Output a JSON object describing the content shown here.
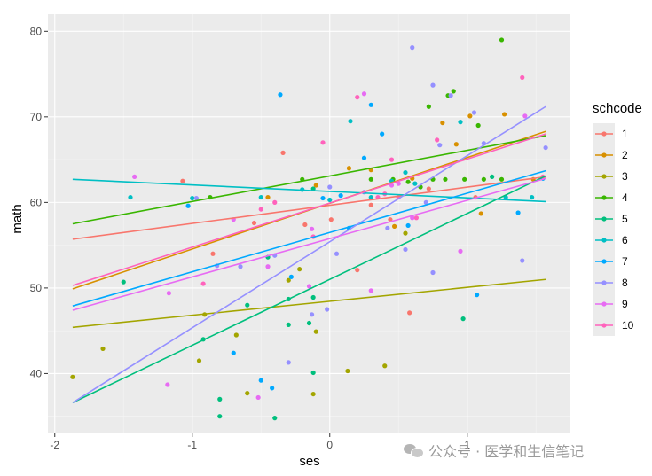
{
  "chart_data": {
    "type": "scatter",
    "title": "",
    "xlabel": "ses",
    "ylabel": "math",
    "xlim": [
      -2.05,
      1.75
    ],
    "ylim": [
      33,
      82
    ],
    "x_ticks": [
      -2,
      -1,
      0,
      1
    ],
    "y_ticks": [
      40,
      50,
      60,
      70,
      80
    ],
    "grid": true,
    "legend": {
      "title": "schcode",
      "position": "right"
    },
    "series": [
      {
        "name": "1",
        "color": "#F8766D",
        "line": [
          [
            -1.87,
            55.7
          ],
          [
            1.57,
            63.0
          ]
        ],
        "points": [
          [
            -1.07,
            62.5
          ],
          [
            -0.85,
            54.0
          ],
          [
            -0.55,
            57.6
          ],
          [
            -0.34,
            65.8
          ],
          [
            -0.18,
            57.4
          ],
          [
            0.01,
            58.0
          ],
          [
            0.2,
            52.1
          ],
          [
            0.3,
            59.7
          ],
          [
            0.44,
            58.0
          ],
          [
            0.58,
            47.1
          ],
          [
            0.72,
            61.6
          ],
          [
            1.06,
            60.6
          ]
        ]
      },
      {
        "name": "2",
        "color": "#D89000",
        "line": [
          [
            -1.87,
            49.9
          ],
          [
            1.57,
            68.3
          ]
        ],
        "points": [
          [
            -0.45,
            60.6
          ],
          [
            -0.1,
            62.0
          ],
          [
            0.14,
            64.0
          ],
          [
            0.3,
            63.8
          ],
          [
            0.47,
            57.2
          ],
          [
            0.6,
            62.8
          ],
          [
            0.82,
            69.3
          ],
          [
            0.92,
            66.8
          ],
          [
            1.02,
            70.1
          ],
          [
            1.1,
            58.7
          ],
          [
            1.27,
            70.3
          ],
          [
            1.48,
            62.7
          ]
        ]
      },
      {
        "name": "3",
        "color": "#A3A500",
        "line": [
          [
            -1.87,
            45.4
          ],
          [
            1.57,
            51.0
          ]
        ],
        "points": [
          [
            -1.87,
            39.6
          ],
          [
            -1.65,
            42.9
          ],
          [
            -0.95,
            41.5
          ],
          [
            -0.91,
            46.9
          ],
          [
            -0.68,
            44.5
          ],
          [
            -0.6,
            37.7
          ],
          [
            -0.3,
            50.9
          ],
          [
            -0.22,
            52.2
          ],
          [
            -0.1,
            44.9
          ],
          [
            -0.12,
            37.6
          ],
          [
            0.13,
            40.3
          ],
          [
            0.4,
            40.9
          ],
          [
            0.55,
            56.4
          ]
        ]
      },
      {
        "name": "4",
        "color": "#39B600",
        "line": [
          [
            -1.87,
            57.5
          ],
          [
            1.57,
            67.8
          ]
        ],
        "points": [
          [
            -0.87,
            60.6
          ],
          [
            -0.2,
            62.7
          ],
          [
            0.3,
            62.7
          ],
          [
            0.46,
            62.7
          ],
          [
            0.57,
            62.4
          ],
          [
            0.66,
            61.8
          ],
          [
            0.72,
            71.2
          ],
          [
            0.75,
            62.7
          ],
          [
            0.84,
            62.7
          ],
          [
            0.86,
            72.5
          ],
          [
            0.9,
            73.0
          ],
          [
            0.98,
            62.7
          ],
          [
            1.08,
            69.0
          ],
          [
            1.12,
            62.7
          ],
          [
            1.25,
            79.0
          ],
          [
            1.25,
            62.7
          ]
        ]
      },
      {
        "name": "5",
        "color": "#00BF7D",
        "line": [
          [
            -1.87,
            36.6
          ],
          [
            1.57,
            63.1
          ]
        ],
        "points": [
          [
            -1.5,
            50.7
          ],
          [
            -0.92,
            44.0
          ],
          [
            -0.8,
            35.0
          ],
          [
            -0.8,
            37.0
          ],
          [
            -0.6,
            48.0
          ],
          [
            -0.45,
            53.6
          ],
          [
            -0.4,
            34.8
          ],
          [
            -0.3,
            45.7
          ],
          [
            -0.3,
            48.7
          ],
          [
            -0.15,
            45.9
          ],
          [
            -0.12,
            48.9
          ],
          [
            -0.12,
            40.1
          ],
          [
            -0.12,
            61.6
          ],
          [
            0.97,
            46.4
          ],
          [
            1.18,
            63.0
          ]
        ]
      },
      {
        "name": "6",
        "color": "#00BFC4",
        "line": [
          [
            -1.87,
            62.7
          ],
          [
            1.57,
            60.1
          ]
        ],
        "points": [
          [
            -1.45,
            60.6
          ],
          [
            -1.0,
            60.5
          ],
          [
            -0.5,
            60.6
          ],
          [
            -0.2,
            61.5
          ],
          [
            0.0,
            60.3
          ],
          [
            0.15,
            69.5
          ],
          [
            0.3,
            60.6
          ],
          [
            0.45,
            62.5
          ],
          [
            0.55,
            63.5
          ],
          [
            0.62,
            62.2
          ],
          [
            0.95,
            69.4
          ],
          [
            1.28,
            60.6
          ],
          [
            1.47,
            60.6
          ]
        ]
      },
      {
        "name": "7",
        "color": "#00A9FF",
        "line": [
          [
            -1.87,
            47.9
          ],
          [
            1.57,
            63.7
          ]
        ],
        "points": [
          [
            -1.03,
            59.6
          ],
          [
            -0.7,
            42.4
          ],
          [
            -0.5,
            39.2
          ],
          [
            -0.42,
            38.3
          ],
          [
            -0.36,
            72.6
          ],
          [
            -0.28,
            51.3
          ],
          [
            -0.05,
            60.5
          ],
          [
            0.08,
            60.8
          ],
          [
            0.14,
            57.0
          ],
          [
            0.25,
            65.2
          ],
          [
            0.3,
            71.4
          ],
          [
            0.38,
            68.0
          ],
          [
            0.57,
            57.3
          ],
          [
            1.07,
            49.2
          ],
          [
            1.37,
            58.8
          ],
          [
            1.55,
            62.8
          ]
        ]
      },
      {
        "name": "8",
        "color": "#9590FF",
        "line": [
          [
            -1.87,
            36.6
          ],
          [
            1.57,
            71.2
          ]
        ],
        "points": [
          [
            -0.97,
            60.5
          ],
          [
            -0.82,
            52.6
          ],
          [
            -0.65,
            52.5
          ],
          [
            -0.4,
            53.8
          ],
          [
            -0.3,
            41.3
          ],
          [
            -0.13,
            46.9
          ],
          [
            -0.02,
            47.5
          ],
          [
            0.0,
            61.8
          ],
          [
            0.05,
            54.0
          ],
          [
            0.25,
            61.2
          ],
          [
            0.42,
            57.0
          ],
          [
            0.55,
            54.5
          ],
          [
            0.6,
            78.1
          ],
          [
            0.7,
            60.0
          ],
          [
            0.75,
            73.7
          ],
          [
            0.75,
            51.8
          ],
          [
            0.8,
            66.7
          ],
          [
            0.88,
            72.5
          ],
          [
            1.05,
            70.5
          ],
          [
            1.12,
            66.9
          ],
          [
            1.4,
            53.2
          ],
          [
            1.57,
            66.4
          ]
        ]
      },
      {
        "name": "9",
        "color": "#E76BF3",
        "line": [
          [
            -1.87,
            47.4
          ],
          [
            1.57,
            62.8
          ]
        ],
        "points": [
          [
            -1.42,
            63.0
          ],
          [
            -1.18,
            38.7
          ],
          [
            -1.17,
            49.4
          ],
          [
            -0.7,
            58.0
          ],
          [
            -0.52,
            37.2
          ],
          [
            -0.45,
            52.5
          ],
          [
            -0.15,
            50.2
          ],
          [
            -0.13,
            56.9
          ],
          [
            0.25,
            72.7
          ],
          [
            0.3,
            49.7
          ],
          [
            0.45,
            62.0
          ],
          [
            0.5,
            62.2
          ],
          [
            0.6,
            58.2
          ],
          [
            0.95,
            54.3
          ],
          [
            1.42,
            70.1
          ]
        ]
      },
      {
        "name": "10",
        "color": "#FF62BC",
        "line": [
          [
            -1.87,
            50.3
          ],
          [
            1.57,
            68.0
          ]
        ],
        "points": [
          [
            -0.92,
            50.5
          ],
          [
            -0.5,
            59.2
          ],
          [
            -0.4,
            60.0
          ],
          [
            -0.12,
            56.0
          ],
          [
            -0.05,
            67.0
          ],
          [
            0.2,
            72.3
          ],
          [
            0.35,
            60.6
          ],
          [
            0.4,
            61.0
          ],
          [
            0.45,
            65.0
          ],
          [
            0.5,
            60.6
          ],
          [
            0.63,
            58.2
          ],
          [
            0.78,
            67.3
          ],
          [
            1.4,
            74.6
          ],
          [
            1.55,
            63.0
          ]
        ]
      }
    ]
  },
  "watermark": {
    "text": "公众号 · 医学和生信笔记",
    "icon": "wechat-icon"
  }
}
